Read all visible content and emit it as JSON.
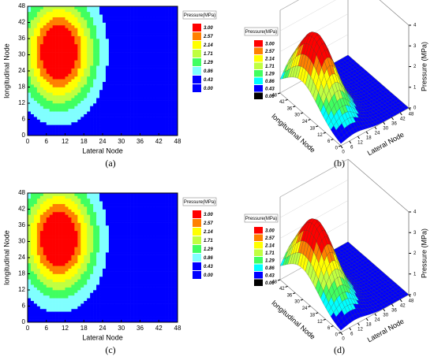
{
  "chart_data": [
    {
      "type": "contour",
      "panel_label": "(a)",
      "xlabel": "Lateral Node",
      "ylabel": "longitudinal Node",
      "legend_title": "Pressure(MPa)",
      "levels": [
        {
          "value": 3,
          "label": "3.00"
        },
        {
          "value": 2.57,
          "label": "2.57"
        },
        {
          "value": 2.14,
          "label": "2.14"
        },
        {
          "value": 1.71,
          "label": "1.71"
        },
        {
          "value": 1.29,
          "label": "1.29"
        },
        {
          "value": 0.86,
          "label": "0.86"
        },
        {
          "value": 0.43,
          "label": "0.43"
        },
        {
          "value": 0,
          "label": "0.00"
        }
      ],
      "colors": [
        "#ff0000",
        "#ff8000",
        "#ffff00",
        "#c0ff40",
        "#40ff60",
        "#80ffff",
        "#0000ff",
        "#0000ff"
      ],
      "xlim": [
        0,
        48
      ],
      "xticks": [
        0,
        6,
        12,
        18,
        24,
        30,
        36,
        42,
        48
      ],
      "ylim": [
        0,
        48
      ],
      "yticks": [
        0,
        6,
        12,
        18,
        24,
        30,
        36,
        42,
        48
      ]
    },
    {
      "type": "surface",
      "panel_label": "(b)",
      "xlabel": "Lateral Node",
      "ylabel": "longitudinal Node",
      "zlabel": "Pressure (MPa)",
      "legend_title": "Pressure(MPa)",
      "levels": [
        {
          "value": 3,
          "label": "3.00"
        },
        {
          "value": 2.57,
          "label": "2.57"
        },
        {
          "value": 2.14,
          "label": "2.14"
        },
        {
          "value": 1.71,
          "label": "1.71"
        },
        {
          "value": 1.29,
          "label": "1.29"
        },
        {
          "value": 0.86,
          "label": "0.86"
        },
        {
          "value": 0.43,
          "label": "0.43"
        },
        {
          "value": 0,
          "label": "0.00"
        }
      ],
      "colors": [
        "#ff0000",
        "#ff8000",
        "#ffff00",
        "#c0ff40",
        "#40ff60",
        "#00ffff",
        "#0000ff",
        "#000000"
      ],
      "xlim": [
        0,
        48
      ],
      "xticks": [
        0,
        6,
        12,
        18,
        24,
        30,
        36,
        42,
        48
      ],
      "ylim": [
        0,
        48
      ],
      "yticks": [
        0,
        6,
        12,
        18,
        24,
        30,
        36,
        42,
        48
      ],
      "zlim": [
        0,
        4
      ],
      "zticks": [
        0,
        1,
        2,
        3,
        4
      ]
    },
    {
      "type": "contour",
      "panel_label": "(c)",
      "xlabel": "Lateral Node",
      "ylabel": "longitudinal Node",
      "legend_title": "Pressure(MPa)",
      "levels": [
        {
          "value": 3,
          "label": "3.00"
        },
        {
          "value": 2.57,
          "label": "2.57"
        },
        {
          "value": 2.14,
          "label": "2.14"
        },
        {
          "value": 1.71,
          "label": "1.71"
        },
        {
          "value": 1.29,
          "label": "1.29"
        },
        {
          "value": 0.86,
          "label": "0.86"
        },
        {
          "value": 0.43,
          "label": "0.43"
        },
        {
          "value": 0,
          "label": "0.00"
        }
      ],
      "colors": [
        "#ff0000",
        "#ff8000",
        "#ffff00",
        "#c0ff40",
        "#40ff60",
        "#80ffff",
        "#0000ff",
        "#0000ff"
      ],
      "xlim": [
        0,
        48
      ],
      "xticks": [
        0,
        6,
        12,
        18,
        24,
        30,
        36,
        42,
        48
      ],
      "ylim": [
        0,
        48
      ],
      "yticks": [
        0,
        6,
        12,
        18,
        24,
        30,
        36,
        42,
        48
      ]
    },
    {
      "type": "surface",
      "panel_label": "(d)",
      "xlabel": "Lateral Node",
      "ylabel": "longitudinal Node",
      "zlabel": "Pressure (MPa)",
      "legend_title": "Pressure(MPa)",
      "levels": [
        {
          "value": 3,
          "label": "3.00"
        },
        {
          "value": 2.57,
          "label": "2.57"
        },
        {
          "value": 2.14,
          "label": "2.14"
        },
        {
          "value": 1.71,
          "label": "1.71"
        },
        {
          "value": 1.29,
          "label": "1.29"
        },
        {
          "value": 0.86,
          "label": "0.86"
        },
        {
          "value": 0.43,
          "label": "0.43"
        },
        {
          "value": 0,
          "label": "0.00"
        }
      ],
      "colors": [
        "#ff0000",
        "#ff8000",
        "#ffff00",
        "#c0ff40",
        "#40ff60",
        "#00ffff",
        "#0000ff",
        "#000000"
      ],
      "xlim": [
        0,
        48
      ],
      "xticks": [
        0,
        6,
        12,
        18,
        24,
        30,
        36,
        42,
        48
      ],
      "ylim": [
        0,
        48
      ],
      "yticks": [
        0,
        6,
        12,
        18,
        24,
        30,
        36,
        42,
        48
      ],
      "zlim": [
        0,
        4
      ],
      "zticks": [
        0,
        1,
        2,
        3,
        4
      ]
    }
  ]
}
